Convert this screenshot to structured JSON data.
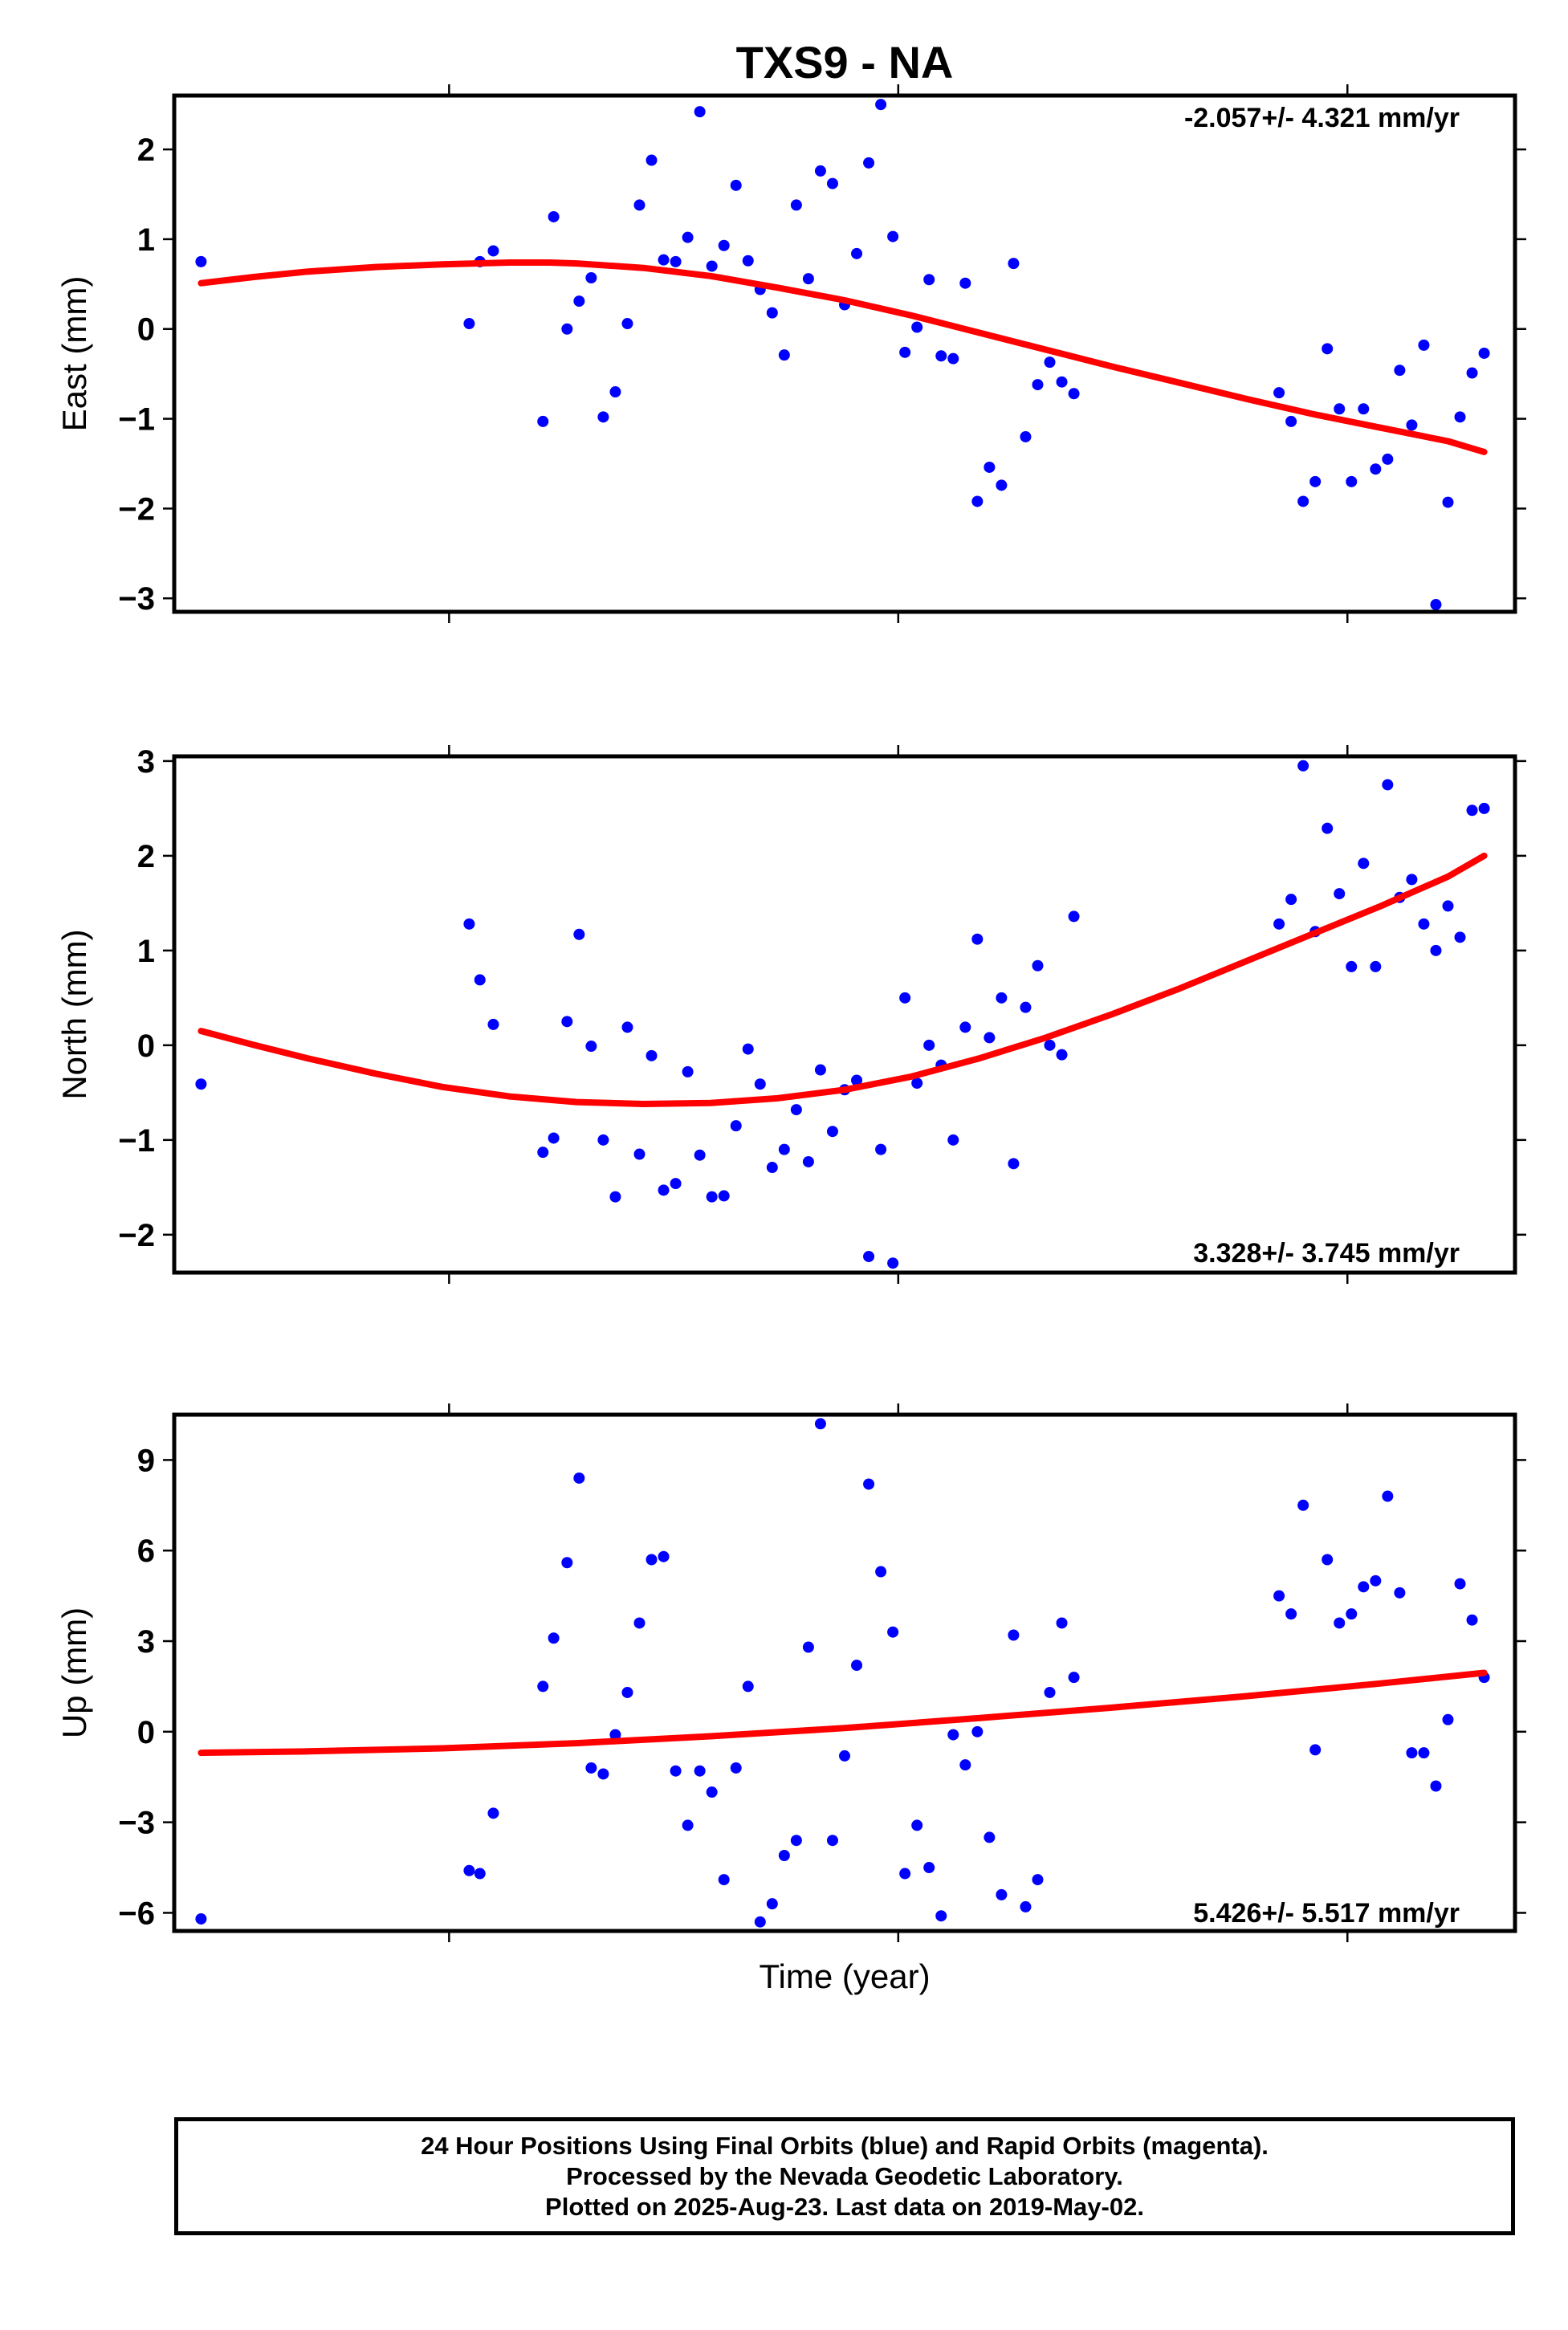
{
  "title": "TXS9 - NA",
  "xlabel": "Time (year)",
  "footer": {
    "line1": "24 Hour Positions Using Final Orbits (blue) and Rapid Orbits (magenta).",
    "line2": "Processed by the Nevada Geodetic Laboratory.",
    "line3": "Plotted on 2025-Aug-23. Last data on 2019-May-02."
  },
  "colors": {
    "final_orbits": "#0000ff",
    "fit": "#ff0000"
  },
  "chart_data": [
    {
      "type": "scatter",
      "ylabel": "East (mm)",
      "rate_label": "-2.057+/- 4.321 mm/yr",
      "ylim": [
        -3.15,
        2.6
      ],
      "yticks": [
        2,
        1,
        0,
        -1,
        -2,
        -3
      ],
      "ytick_labels": [
        "2",
        "1",
        "0",
        "−1",
        "−2",
        "−3"
      ],
      "xlim": [
        0,
        1
      ],
      "points": [
        [
          0.02,
          0.75
        ],
        [
          0.22,
          0.06
        ],
        [
          0.228,
          0.75
        ],
        [
          0.238,
          0.87
        ],
        [
          0.275,
          -1.03
        ],
        [
          0.283,
          1.25
        ],
        [
          0.293,
          0.0
        ],
        [
          0.302,
          0.31
        ],
        [
          0.311,
          0.57
        ],
        [
          0.32,
          -0.98
        ],
        [
          0.329,
          -0.7
        ],
        [
          0.338,
          0.06
        ],
        [
          0.347,
          1.38
        ],
        [
          0.356,
          1.88
        ],
        [
          0.365,
          0.77
        ],
        [
          0.374,
          0.75
        ],
        [
          0.383,
          1.02
        ],
        [
          0.392,
          2.42
        ],
        [
          0.401,
          0.7
        ],
        [
          0.41,
          0.93
        ],
        [
          0.419,
          1.6
        ],
        [
          0.428,
          0.76
        ],
        [
          0.437,
          0.44
        ],
        [
          0.446,
          0.18
        ],
        [
          0.455,
          -0.29
        ],
        [
          0.464,
          1.38
        ],
        [
          0.473,
          0.56
        ],
        [
          0.482,
          1.76
        ],
        [
          0.491,
          1.62
        ],
        [
          0.5,
          0.27
        ],
        [
          0.509,
          0.84
        ],
        [
          0.518,
          1.85
        ],
        [
          0.527,
          2.5
        ],
        [
          0.536,
          1.03
        ],
        [
          0.545,
          -0.26
        ],
        [
          0.554,
          0.02
        ],
        [
          0.563,
          0.55
        ],
        [
          0.572,
          -0.3
        ],
        [
          0.581,
          -0.33
        ],
        [
          0.59,
          0.51
        ],
        [
          0.599,
          -1.92
        ],
        [
          0.608,
          -1.54
        ],
        [
          0.617,
          -1.74
        ],
        [
          0.626,
          0.73
        ],
        [
          0.635,
          -1.2
        ],
        [
          0.644,
          -0.62
        ],
        [
          0.653,
          -0.37
        ],
        [
          0.662,
          -0.59
        ],
        [
          0.671,
          -0.72
        ],
        [
          0.824,
          -0.71
        ],
        [
          0.833,
          -1.03
        ],
        [
          0.842,
          -1.92
        ],
        [
          0.851,
          -1.7
        ],
        [
          0.86,
          -0.22
        ],
        [
          0.869,
          -0.89
        ],
        [
          0.878,
          -1.7
        ],
        [
          0.887,
          -0.89
        ],
        [
          0.896,
          -1.56
        ],
        [
          0.905,
          -1.45
        ],
        [
          0.914,
          -0.46
        ],
        [
          0.923,
          -1.07
        ],
        [
          0.932,
          -0.18
        ],
        [
          0.941,
          -3.07
        ],
        [
          0.95,
          -1.93
        ],
        [
          0.959,
          -0.98
        ],
        [
          0.968,
          -0.49
        ],
        [
          0.977,
          -0.27
        ]
      ],
      "fit": [
        [
          0.02,
          0.51
        ],
        [
          0.06,
          0.58
        ],
        [
          0.1,
          0.64
        ],
        [
          0.15,
          0.69
        ],
        [
          0.2,
          0.72
        ],
        [
          0.25,
          0.74
        ],
        [
          0.28,
          0.74
        ],
        [
          0.3,
          0.73
        ],
        [
          0.35,
          0.68
        ],
        [
          0.4,
          0.59
        ],
        [
          0.45,
          0.46
        ],
        [
          0.5,
          0.32
        ],
        [
          0.55,
          0.15
        ],
        [
          0.6,
          -0.04
        ],
        [
          0.65,
          -0.23
        ],
        [
          0.7,
          -0.42
        ],
        [
          0.75,
          -0.6
        ],
        [
          0.8,
          -0.78
        ],
        [
          0.85,
          -0.95
        ],
        [
          0.9,
          -1.1
        ],
        [
          0.95,
          -1.25
        ],
        [
          0.977,
          -1.37
        ]
      ]
    },
    {
      "type": "scatter",
      "ylabel": "North (mm)",
      "rate_label": "3.328+/- 3.745 mm/yr",
      "ylim": [
        -2.4,
        3.05
      ],
      "yticks": [
        3,
        2,
        1,
        0,
        -1,
        -2
      ],
      "ytick_labels": [
        "3",
        "2",
        "1",
        "0",
        "−1",
        "−2"
      ],
      "xlim": [
        0,
        1
      ],
      "points": [
        [
          0.02,
          -0.41
        ],
        [
          0.22,
          1.28
        ],
        [
          0.228,
          0.69
        ],
        [
          0.238,
          0.22
        ],
        [
          0.275,
          -1.13
        ],
        [
          0.283,
          -0.98
        ],
        [
          0.293,
          0.25
        ],
        [
          0.302,
          1.17
        ],
        [
          0.311,
          -0.01
        ],
        [
          0.32,
          -1.0
        ],
        [
          0.329,
          -1.6
        ],
        [
          0.338,
          0.19
        ],
        [
          0.347,
          -1.15
        ],
        [
          0.356,
          -0.11
        ],
        [
          0.365,
          -1.53
        ],
        [
          0.374,
          -1.46
        ],
        [
          0.383,
          -0.28
        ],
        [
          0.392,
          -1.16
        ],
        [
          0.401,
          -1.6
        ],
        [
          0.41,
          -1.59
        ],
        [
          0.419,
          -0.85
        ],
        [
          0.428,
          -0.04
        ],
        [
          0.437,
          -0.41
        ],
        [
          0.446,
          -1.29
        ],
        [
          0.455,
          -1.1
        ],
        [
          0.464,
          -0.68
        ],
        [
          0.473,
          -1.23
        ],
        [
          0.482,
          -0.26
        ],
        [
          0.491,
          -0.91
        ],
        [
          0.5,
          -0.47
        ],
        [
          0.509,
          -0.37
        ],
        [
          0.518,
          -2.23
        ],
        [
          0.527,
          -1.1
        ],
        [
          0.536,
          -2.3
        ],
        [
          0.545,
          0.5
        ],
        [
          0.554,
          -0.4
        ],
        [
          0.563,
          0.0
        ],
        [
          0.572,
          -0.21
        ],
        [
          0.581,
          -1.0
        ],
        [
          0.59,
          0.19
        ],
        [
          0.599,
          1.12
        ],
        [
          0.608,
          0.08
        ],
        [
          0.617,
          0.5
        ],
        [
          0.626,
          -1.25
        ],
        [
          0.635,
          0.4
        ],
        [
          0.644,
          0.84
        ],
        [
          0.653,
          0.0
        ],
        [
          0.662,
          -0.1
        ],
        [
          0.671,
          1.36
        ],
        [
          0.824,
          1.28
        ],
        [
          0.833,
          1.54
        ],
        [
          0.842,
          2.95
        ],
        [
          0.851,
          1.2
        ],
        [
          0.86,
          2.29
        ],
        [
          0.869,
          1.6
        ],
        [
          0.878,
          0.83
        ],
        [
          0.887,
          1.92
        ],
        [
          0.896,
          0.83
        ],
        [
          0.905,
          2.75
        ],
        [
          0.914,
          1.56
        ],
        [
          0.923,
          1.75
        ],
        [
          0.932,
          1.28
        ],
        [
          0.941,
          1.0
        ],
        [
          0.95,
          1.47
        ],
        [
          0.959,
          1.14
        ],
        [
          0.968,
          2.48
        ],
        [
          0.977,
          2.5
        ]
      ],
      "fit": [
        [
          0.02,
          0.15
        ],
        [
          0.06,
          0.0
        ],
        [
          0.1,
          -0.14
        ],
        [
          0.15,
          -0.3
        ],
        [
          0.2,
          -0.44
        ],
        [
          0.25,
          -0.54
        ],
        [
          0.3,
          -0.6
        ],
        [
          0.35,
          -0.62
        ],
        [
          0.4,
          -0.61
        ],
        [
          0.45,
          -0.56
        ],
        [
          0.5,
          -0.47
        ],
        [
          0.55,
          -0.33
        ],
        [
          0.6,
          -0.14
        ],
        [
          0.65,
          0.08
        ],
        [
          0.7,
          0.33
        ],
        [
          0.75,
          0.6
        ],
        [
          0.8,
          0.89
        ],
        [
          0.85,
          1.18
        ],
        [
          0.9,
          1.47
        ],
        [
          0.95,
          1.78
        ],
        [
          0.977,
          2.0
        ]
      ]
    },
    {
      "type": "scatter",
      "ylabel": "Up (mm)",
      "rate_label": "5.426+/- 5.517 mm/yr",
      "ylim": [
        -6.6,
        10.5
      ],
      "yticks": [
        9,
        6,
        3,
        0,
        -3,
        -6
      ],
      "ytick_labels": [
        "9",
        "6",
        "3",
        "0",
        "−3",
        "−6"
      ],
      "xlim": [
        0,
        1
      ],
      "points": [
        [
          0.02,
          -6.2
        ],
        [
          0.22,
          -4.6
        ],
        [
          0.228,
          -4.7
        ],
        [
          0.238,
          -2.7
        ],
        [
          0.275,
          1.5
        ],
        [
          0.283,
          3.1
        ],
        [
          0.293,
          5.6
        ],
        [
          0.302,
          8.4
        ],
        [
          0.311,
          -1.2
        ],
        [
          0.32,
          -1.4
        ],
        [
          0.329,
          -0.1
        ],
        [
          0.338,
          1.3
        ],
        [
          0.347,
          3.6
        ],
        [
          0.356,
          5.7
        ],
        [
          0.365,
          5.8
        ],
        [
          0.374,
          -1.3
        ],
        [
          0.383,
          -3.1
        ],
        [
          0.392,
          -1.3
        ],
        [
          0.401,
          -2.0
        ],
        [
          0.41,
          -4.9
        ],
        [
          0.419,
          -1.2
        ],
        [
          0.428,
          1.5
        ],
        [
          0.437,
          -6.3
        ],
        [
          0.446,
          -5.7
        ],
        [
          0.455,
          -4.1
        ],
        [
          0.464,
          -3.6
        ],
        [
          0.473,
          2.8
        ],
        [
          0.482,
          10.2
        ],
        [
          0.491,
          -3.6
        ],
        [
          0.5,
          -0.8
        ],
        [
          0.509,
          2.2
        ],
        [
          0.518,
          8.2
        ],
        [
          0.527,
          5.3
        ],
        [
          0.536,
          3.3
        ],
        [
          0.545,
          -4.7
        ],
        [
          0.554,
          -3.1
        ],
        [
          0.563,
          -4.5
        ],
        [
          0.572,
          -6.1
        ],
        [
          0.581,
          -0.1
        ],
        [
          0.59,
          -1.1
        ],
        [
          0.599,
          0.0
        ],
        [
          0.608,
          -3.5
        ],
        [
          0.617,
          -5.4
        ],
        [
          0.626,
          3.2
        ],
        [
          0.635,
          -5.8
        ],
        [
          0.644,
          -4.9
        ],
        [
          0.653,
          1.3
        ],
        [
          0.662,
          3.6
        ],
        [
          0.671,
          1.8
        ],
        [
          0.824,
          4.5
        ],
        [
          0.833,
          3.9
        ],
        [
          0.842,
          7.5
        ],
        [
          0.851,
          -0.6
        ],
        [
          0.86,
          5.7
        ],
        [
          0.869,
          3.6
        ],
        [
          0.878,
          3.9
        ],
        [
          0.887,
          4.8
        ],
        [
          0.896,
          5.0
        ],
        [
          0.905,
          7.8
        ],
        [
          0.914,
          4.6
        ],
        [
          0.923,
          -0.7
        ],
        [
          0.932,
          -0.7
        ],
        [
          0.941,
          -1.8
        ],
        [
          0.95,
          0.4
        ],
        [
          0.959,
          4.9
        ],
        [
          0.968,
          3.7
        ],
        [
          0.977,
          1.8
        ]
      ],
      "fit": [
        [
          0.02,
          -0.7
        ],
        [
          0.1,
          -0.65
        ],
        [
          0.2,
          -0.55
        ],
        [
          0.3,
          -0.38
        ],
        [
          0.4,
          -0.15
        ],
        [
          0.5,
          0.12
        ],
        [
          0.6,
          0.45
        ],
        [
          0.7,
          0.8
        ],
        [
          0.8,
          1.18
        ],
        [
          0.9,
          1.6
        ],
        [
          0.977,
          1.95
        ]
      ]
    }
  ]
}
